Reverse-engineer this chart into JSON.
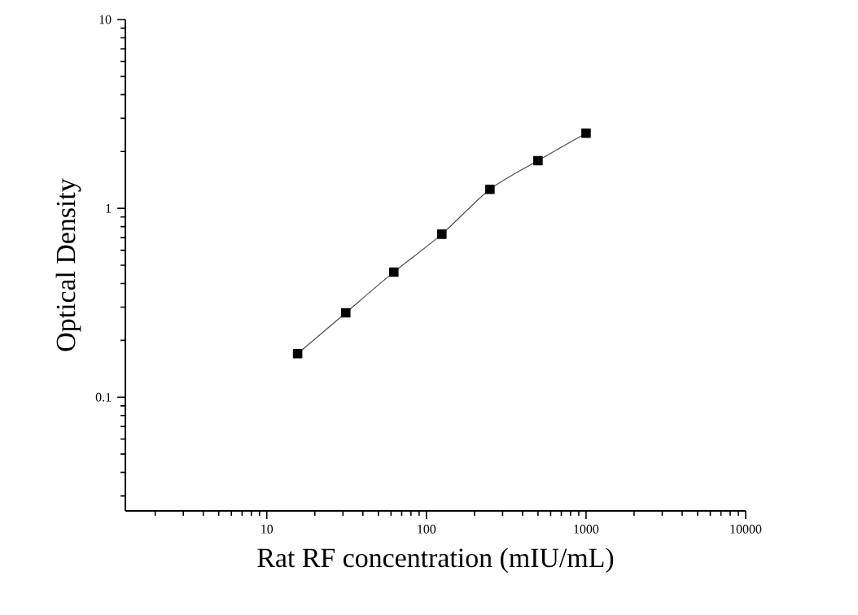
{
  "chart_data": {
    "type": "line",
    "xlabel": "Rat RF concentration (mIU/mL)",
    "ylabel": "Optical Density",
    "x": [
      15.6,
      31.25,
      62.5,
      125,
      250,
      500,
      1000
    ],
    "series": [
      {
        "color": "#000000",
        "values": [
          0.17,
          0.28,
          0.46,
          0.73,
          1.26,
          1.79,
          2.5
        ]
      }
    ],
    "log": "xy",
    "xlim": [
      1.3,
      10000
    ],
    "ylim": [
      0.025,
      10
    ],
    "xticks": [
      10,
      100,
      1000,
      10000
    ],
    "yticks": [
      0.1,
      1,
      10
    ],
    "marker": "square",
    "line_style": "solid"
  }
}
